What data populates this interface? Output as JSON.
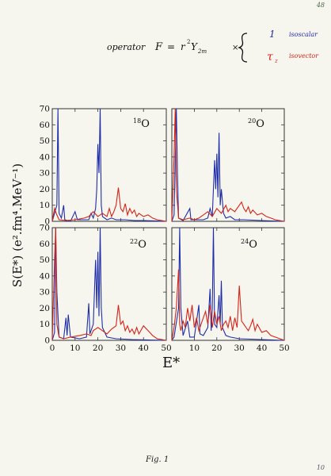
{
  "corner_top": "48",
  "corner_bottom": "10",
  "handwritten": {
    "operator_word": "operator",
    "lhs": "F",
    "equals": "=",
    "r_sym": "r",
    "r_exp": "2",
    "Y_sym": "Y",
    "Y_sub": "2m",
    "times": "×",
    "one_sym": "1",
    "tau_sym": "τ",
    "tau_sub": "z",
    "isoscalar": "isoscalar",
    "isovector": "isovector"
  },
  "colors": {
    "isoscalar": "#1f2ea8",
    "isovector": "#d42418",
    "ink": "#111111",
    "frame": "#333333"
  },
  "figure": {
    "ylabel": "S(E*) (e².fm⁴.MeV⁻¹)",
    "xlabel": "E*",
    "yticks": [
      "0",
      "10",
      "20",
      "30",
      "40",
      "50",
      "60",
      "70"
    ],
    "xticks": [
      "0",
      "10",
      "20",
      "30",
      "40",
      "50"
    ],
    "x_tick_labels_bottom": [
      "0",
      "10",
      "20",
      "30",
      "40",
      "50",
      "10",
      "20",
      "30",
      "40",
      "50"
    ]
  },
  "caption": "Fig. 1",
  "chart_data": [
    {
      "type": "line",
      "panel_label": {
        "mass": "18",
        "element": "O"
      },
      "xlim": [
        0,
        50
      ],
      "ylim": [
        0,
        70
      ],
      "grid": false,
      "series": [
        {
          "color": "#1f2ea8",
          "points": [
            [
              0,
              0
            ],
            [
              2,
              10
            ],
            [
              2.5,
              70
            ],
            [
              3,
              5
            ],
            [
              4,
              2
            ],
            [
              5,
              10
            ],
            [
              5.5,
              1
            ],
            [
              8,
              0
            ],
            [
              10,
              6
            ],
            [
              11,
              1
            ],
            [
              16,
              1
            ],
            [
              17,
              5
            ],
            [
              18,
              2
            ],
            [
              19,
              8
            ],
            [
              19.5,
              20
            ],
            [
              20,
              48
            ],
            [
              20.5,
              30
            ],
            [
              21,
              72
            ],
            [
              21.5,
              10
            ],
            [
              22,
              3
            ],
            [
              24,
              1
            ],
            [
              26,
              2
            ],
            [
              28,
              1
            ],
            [
              32,
              1
            ],
            [
              36,
              0.5
            ],
            [
              40,
              0.5
            ],
            [
              45,
              0.3
            ],
            [
              50,
              0
            ]
          ]
        },
        {
          "color": "#d42418",
          "points": [
            [
              0,
              0
            ],
            [
              1,
              8
            ],
            [
              2,
              4
            ],
            [
              3,
              1
            ],
            [
              6,
              0.5
            ],
            [
              10,
              1
            ],
            [
              14,
              2
            ],
            [
              16,
              3
            ],
            [
              18,
              6
            ],
            [
              20,
              3
            ],
            [
              22,
              5
            ],
            [
              24,
              3
            ],
            [
              25,
              8
            ],
            [
              26,
              3
            ],
            [
              27,
              6
            ],
            [
              28,
              10
            ],
            [
              29,
              21
            ],
            [
              30,
              8
            ],
            [
              31,
              6
            ],
            [
              32,
              11
            ],
            [
              33,
              4
            ],
            [
              34,
              8
            ],
            [
              35,
              5
            ],
            [
              36,
              7
            ],
            [
              37,
              3
            ],
            [
              38,
              5
            ],
            [
              40,
              3
            ],
            [
              42,
              4
            ],
            [
              44,
              2
            ],
            [
              46,
              1
            ],
            [
              50,
              0
            ]
          ]
        }
      ]
    },
    {
      "type": "line",
      "panel_label": {
        "mass": "20",
        "element": "O"
      },
      "xlim": [
        0,
        50
      ],
      "ylim": [
        0,
        70
      ],
      "grid": false,
      "series": [
        {
          "color": "#1f2ea8",
          "points": [
            [
              0,
              0
            ],
            [
              1,
              4
            ],
            [
              2,
              70
            ],
            [
              2.5,
              30
            ],
            [
              3,
              2
            ],
            [
              5,
              0.5
            ],
            [
              8,
              8
            ],
            [
              8.5,
              1
            ],
            [
              14,
              1
            ],
            [
              16,
              2
            ],
            [
              17,
              8
            ],
            [
              18,
              3
            ],
            [
              19,
              38
            ],
            [
              19.5,
              20
            ],
            [
              20,
              42
            ],
            [
              20.5,
              15
            ],
            [
              21,
              55
            ],
            [
              21.5,
              10
            ],
            [
              22,
              20
            ],
            [
              23,
              5
            ],
            [
              24,
              2
            ],
            [
              26,
              3
            ],
            [
              28,
              1
            ],
            [
              32,
              1
            ],
            [
              40,
              0.5
            ],
            [
              50,
              0
            ]
          ]
        },
        {
          "color": "#d42418",
          "points": [
            [
              0,
              0
            ],
            [
              1,
              40
            ],
            [
              1.5,
              70
            ],
            [
              2,
              20
            ],
            [
              3,
              2
            ],
            [
              5,
              1
            ],
            [
              8,
              2
            ],
            [
              10,
              1
            ],
            [
              12,
              2
            ],
            [
              14,
              4
            ],
            [
              16,
              6
            ],
            [
              18,
              3
            ],
            [
              20,
              8
            ],
            [
              22,
              5
            ],
            [
              24,
              10
            ],
            [
              25,
              6
            ],
            [
              26,
              8
            ],
            [
              28,
              6
            ],
            [
              30,
              10
            ],
            [
              31,
              12
            ],
            [
              32,
              8
            ],
            [
              33,
              6
            ],
            [
              34,
              9
            ],
            [
              35,
              5
            ],
            [
              36,
              7
            ],
            [
              38,
              4
            ],
            [
              40,
              5
            ],
            [
              42,
              3
            ],
            [
              44,
              2
            ],
            [
              46,
              1
            ],
            [
              50,
              0
            ]
          ]
        }
      ]
    },
    {
      "type": "line",
      "panel_label": {
        "mass": "22",
        "element": "O"
      },
      "xlim": [
        0,
        50
      ],
      "ylim": [
        0,
        70
      ],
      "grid": false,
      "series": [
        {
          "color": "#1f2ea8",
          "points": [
            [
              0,
              0
            ],
            [
              1,
              5
            ],
            [
              1.5,
              70
            ],
            [
              2,
              30
            ],
            [
              3,
              2
            ],
            [
              5,
              1
            ],
            [
              6,
              14
            ],
            [
              6.5,
              3
            ],
            [
              7,
              16
            ],
            [
              8,
              2
            ],
            [
              12,
              1
            ],
            [
              15,
              2
            ],
            [
              16,
              23
            ],
            [
              16.5,
              4
            ],
            [
              18,
              10
            ],
            [
              19,
              50
            ],
            [
              19.5,
              20
            ],
            [
              20,
              55
            ],
            [
              20.5,
              15
            ],
            [
              21,
              70
            ],
            [
              21.5,
              20
            ],
            [
              22,
              8
            ],
            [
              24,
              2
            ],
            [
              28,
              1
            ],
            [
              35,
              0.5
            ],
            [
              50,
              0
            ]
          ]
        },
        {
          "color": "#d42418",
          "points": [
            [
              0,
              0
            ],
            [
              1,
              50
            ],
            [
              1.5,
              70
            ],
            [
              2,
              10
            ],
            [
              3,
              2
            ],
            [
              5,
              1
            ],
            [
              8,
              2
            ],
            [
              12,
              3
            ],
            [
              15,
              4
            ],
            [
              17,
              3
            ],
            [
              18,
              6
            ],
            [
              20,
              8
            ],
            [
              22,
              6
            ],
            [
              24,
              4
            ],
            [
              26,
              7
            ],
            [
              28,
              9
            ],
            [
              29,
              22
            ],
            [
              30,
              10
            ],
            [
              31,
              12
            ],
            [
              32,
              6
            ],
            [
              33,
              9
            ],
            [
              34,
              5
            ],
            [
              35,
              7
            ],
            [
              36,
              4
            ],
            [
              37,
              8
            ],
            [
              38,
              4
            ],
            [
              40,
              9
            ],
            [
              42,
              6
            ],
            [
              44,
              3
            ],
            [
              46,
              1
            ],
            [
              50,
              0
            ]
          ]
        }
      ]
    },
    {
      "type": "line",
      "panel_label": {
        "mass": "24",
        "element": "O"
      },
      "xlim": [
        0,
        50
      ],
      "ylim": [
        0,
        70
      ],
      "grid": false,
      "series": [
        {
          "color": "#1f2ea8",
          "points": [
            [
              0,
              0
            ],
            [
              1,
              2
            ],
            [
              3,
              20
            ],
            [
              3.5,
              70
            ],
            [
              4,
              20
            ],
            [
              5,
              3
            ],
            [
              7,
              12
            ],
            [
              8,
              2
            ],
            [
              10,
              2
            ],
            [
              12,
              22
            ],
            [
              12.5,
              4
            ],
            [
              14,
              3
            ],
            [
              16,
              8
            ],
            [
              17,
              32
            ],
            [
              17.5,
              6
            ],
            [
              18,
              20
            ],
            [
              18.5,
              70
            ],
            [
              19,
              10
            ],
            [
              20,
              8
            ],
            [
              21,
              28
            ],
            [
              21.5,
              10
            ],
            [
              22,
              37
            ],
            [
              22.5,
              8
            ],
            [
              24,
              3
            ],
            [
              26,
              2
            ],
            [
              30,
              1
            ],
            [
              40,
              0.5
            ],
            [
              50,
              0
            ]
          ]
        },
        {
          "color": "#d42418",
          "points": [
            [
              0,
              0
            ],
            [
              1,
              8
            ],
            [
              2,
              20
            ],
            [
              3,
              44
            ],
            [
              3.5,
              10
            ],
            [
              4,
              6
            ],
            [
              5,
              12
            ],
            [
              6,
              8
            ],
            [
              7,
              20
            ],
            [
              8,
              12
            ],
            [
              9,
              22
            ],
            [
              10,
              8
            ],
            [
              11,
              14
            ],
            [
              12,
              6
            ],
            [
              13,
              10
            ],
            [
              15,
              18
            ],
            [
              16,
              10
            ],
            [
              17,
              22
            ],
            [
              18,
              8
            ],
            [
              19,
              18
            ],
            [
              20,
              10
            ],
            [
              21,
              15
            ],
            [
              22,
              6
            ],
            [
              23,
              10
            ],
            [
              24,
              12
            ],
            [
              25,
              8
            ],
            [
              26,
              15
            ],
            [
              27,
              6
            ],
            [
              28,
              14
            ],
            [
              29,
              8
            ],
            [
              30,
              34
            ],
            [
              31,
              12
            ],
            [
              32,
              10
            ],
            [
              33,
              8
            ],
            [
              34,
              6
            ],
            [
              35,
              9
            ],
            [
              36,
              13
            ],
            [
              37,
              6
            ],
            [
              38,
              10
            ],
            [
              40,
              5
            ],
            [
              42,
              6
            ],
            [
              44,
              3
            ],
            [
              46,
              2
            ],
            [
              50,
              0
            ]
          ]
        }
      ]
    }
  ]
}
